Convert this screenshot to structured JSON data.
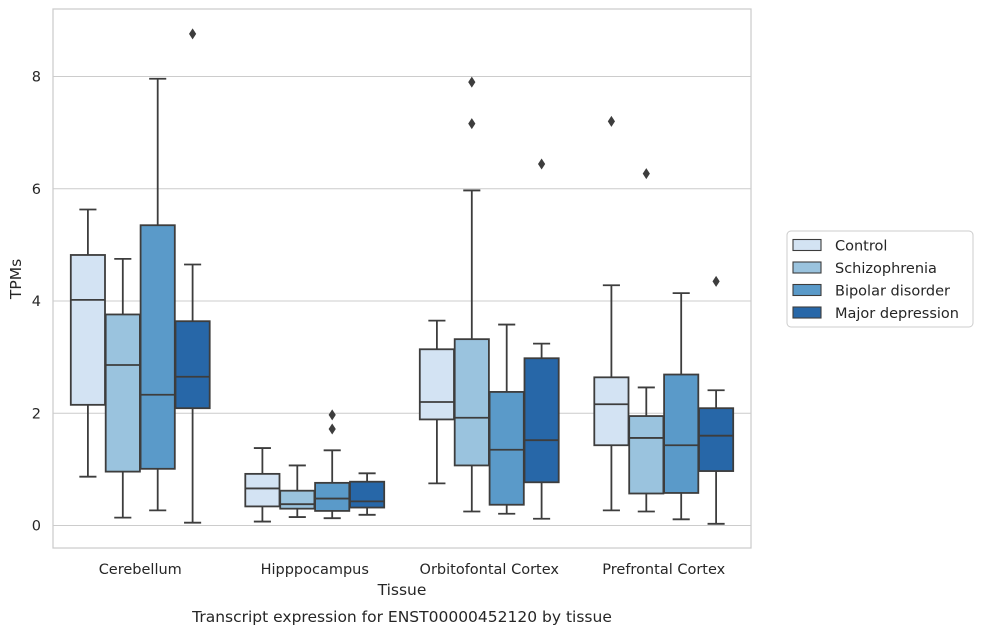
{
  "chart_data": {
    "type": "box",
    "title": "Transcript expression for ENST00000452120 by tissue",
    "xlabel": "Tissue",
    "ylabel": "TPMs",
    "ylim": [
      -0.4,
      9.2
    ],
    "yticks": [
      0,
      2,
      4,
      6,
      8
    ],
    "grid": true,
    "legend_position": "right, outside plot",
    "categories": [
      "Cerebellum",
      "Hipppocampus",
      "Orbitofontal Cortex",
      "Prefrontal Cortex"
    ],
    "series": [
      {
        "name": "Control",
        "color": "#d3e3f3",
        "boxes": [
          {
            "whislo": 0.87,
            "q1": 2.15,
            "med": 4.02,
            "q3": 4.82,
            "whishi": 5.63,
            "fliers": []
          },
          {
            "whislo": 0.07,
            "q1": 0.34,
            "med": 0.66,
            "q3": 0.92,
            "whishi": 1.38,
            "fliers": []
          },
          {
            "whislo": 0.75,
            "q1": 1.89,
            "med": 2.2,
            "q3": 3.14,
            "whishi": 3.65,
            "fliers": []
          },
          {
            "whislo": 0.27,
            "q1": 1.43,
            "med": 2.16,
            "q3": 2.64,
            "whishi": 4.28,
            "fliers": [
              7.2
            ]
          }
        ]
      },
      {
        "name": "Schizophrenia",
        "color": "#9ac3de",
        "boxes": [
          {
            "whislo": 0.14,
            "q1": 0.96,
            "med": 2.86,
            "q3": 3.76,
            "whishi": 4.75,
            "fliers": []
          },
          {
            "whislo": 0.15,
            "q1": 0.3,
            "med": 0.38,
            "q3": 0.62,
            "whishi": 1.07,
            "fliers": []
          },
          {
            "whislo": 0.25,
            "q1": 1.07,
            "med": 1.92,
            "q3": 3.32,
            "whishi": 5.97,
            "fliers": [
              7.16,
              7.9
            ]
          },
          {
            "whislo": 0.25,
            "q1": 0.57,
            "med": 1.56,
            "q3": 1.95,
            "whishi": 2.46,
            "fliers": [
              6.27
            ]
          }
        ]
      },
      {
        "name": "Bipolar disorder",
        "color": "#5a9ac9",
        "boxes": [
          {
            "whislo": 0.27,
            "q1": 1.01,
            "med": 2.33,
            "q3": 5.35,
            "whishi": 7.96,
            "fliers": []
          },
          {
            "whislo": 0.13,
            "q1": 0.26,
            "med": 0.48,
            "q3": 0.76,
            "whishi": 1.34,
            "fliers": [
              1.72,
              1.97
            ]
          },
          {
            "whislo": 0.21,
            "q1": 0.37,
            "med": 1.35,
            "q3": 2.38,
            "whishi": 3.58,
            "fliers": []
          },
          {
            "whislo": 0.11,
            "q1": 0.58,
            "med": 1.43,
            "q3": 2.69,
            "whishi": 4.14,
            "fliers": []
          }
        ]
      },
      {
        "name": "Major depression",
        "color": "#2767a8",
        "boxes": [
          {
            "whislo": 0.05,
            "q1": 2.09,
            "med": 2.65,
            "q3": 3.64,
            "whishi": 4.65,
            "fliers": [
              8.76
            ]
          },
          {
            "whislo": 0.19,
            "q1": 0.32,
            "med": 0.43,
            "q3": 0.78,
            "whishi": 0.93,
            "fliers": []
          },
          {
            "whislo": 0.12,
            "q1": 0.77,
            "med": 1.52,
            "q3": 2.98,
            "whishi": 3.24,
            "fliers": [
              6.44
            ]
          },
          {
            "whislo": 0.03,
            "q1": 0.97,
            "med": 1.6,
            "q3": 2.09,
            "whishi": 2.41,
            "fliers": [
              4.35
            ]
          }
        ]
      }
    ]
  }
}
